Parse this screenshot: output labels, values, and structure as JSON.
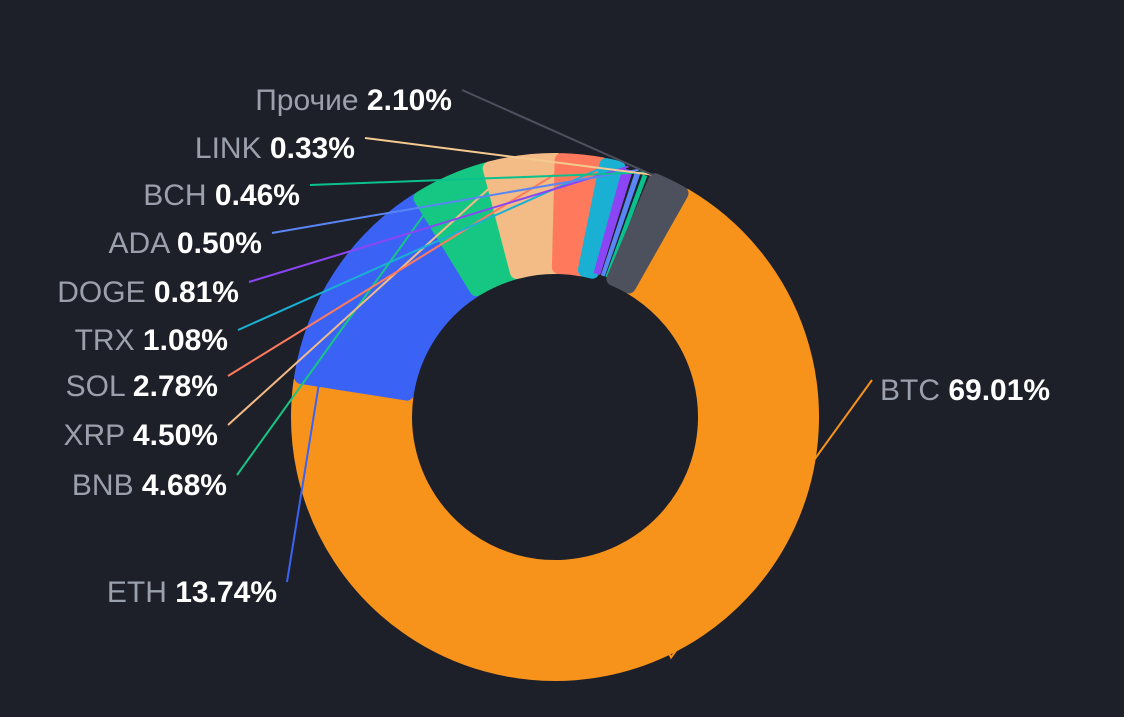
{
  "chart_data": {
    "type": "donut",
    "legend_placement": "leader-line labels around the ring",
    "slices": [
      {
        "name": "BTC",
        "value": 69.01,
        "label": "69.01%",
        "color": "#f7931a"
      },
      {
        "name": "ETH",
        "value": 13.74,
        "label": "13.74%",
        "color": "#3a63f5"
      },
      {
        "name": "BNB",
        "value": 4.68,
        "label": "4.68%",
        "color": "#16c784"
      },
      {
        "name": "XRP",
        "value": 4.5,
        "label": "4.50%",
        "color": "#f3bb85"
      },
      {
        "name": "SOL",
        "value": 2.78,
        "label": "2.78%",
        "color": "#ff7a5c"
      },
      {
        "name": "TRX",
        "value": 1.08,
        "label": "1.08%",
        "color": "#1ab0d4"
      },
      {
        "name": "DOGE",
        "value": 0.81,
        "label": "0.81%",
        "color": "#8b45f5"
      },
      {
        "name": "ADA",
        "value": 0.5,
        "label": "0.50%",
        "color": "#5a86f5"
      },
      {
        "name": "BCH",
        "value": 0.46,
        "label": "0.46%",
        "color": "#0ac18e"
      },
      {
        "name": "LINK",
        "value": 0.33,
        "label": "0.33%",
        "color": "#f5c98f"
      },
      {
        "name": "Прочие",
        "value": 2.1,
        "label": "2.10%",
        "color": "#4d515e"
      }
    ]
  }
}
